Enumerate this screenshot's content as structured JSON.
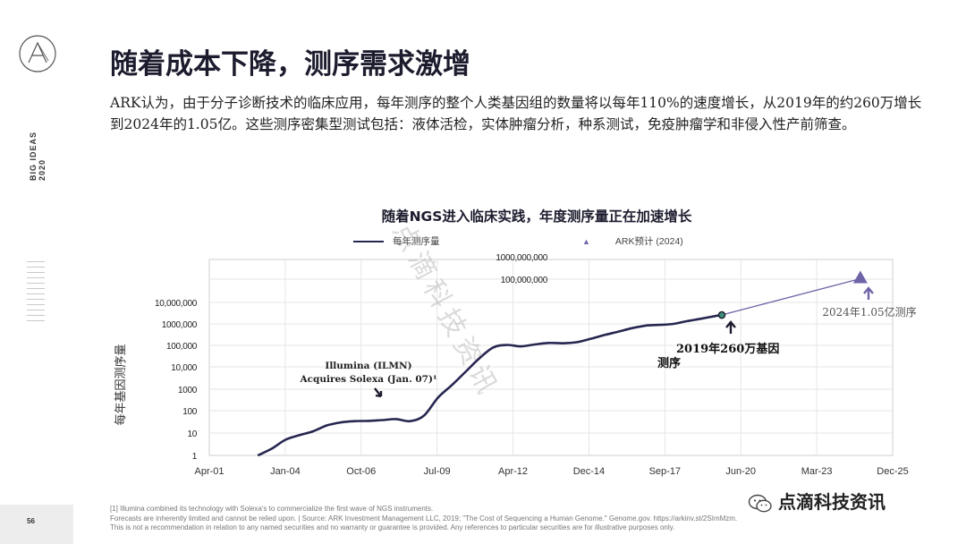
{
  "slide": {
    "title": "随着成本下降，测序需求激增",
    "body": "ARK认为，由于分子诊断技术的临床应用，每年测序的整个人类基因组的数量将以每年110%的速度增长，从2019年的约260万增长到2024年的1.05亿。这些测序密集型测试包括：液体活检，实体肿瘤分析，种系测试，免疫肿瘤学和非侵入性产前筛查。",
    "side_brand": "BIG IDEAS 2020",
    "page_number": "56",
    "footnote_lines": [
      "[1] Illumina combined its technology with Solexa's to commercialize the first wave of NGS instruments.",
      "Forecasts are inherently limited and cannot be relied upon.  |  Source: ARK Investment Management LLC, 2019; \"The Cost of Sequencing a Human Genome.\" Genome.gov. https://arkinv.st/2SImMzm.",
      "This is not a recommendation in relation to any named securities and no warranty or guarantee is provided. Any references to particular securities are for illustrative purposes only."
    ],
    "wechat_label": "点滴科技资讯",
    "watermark": "点滴科技资讯"
  },
  "colors": {
    "series_line": "#262650",
    "forecast_line": "#6f63a8",
    "marker_fill": "#3d8c7a",
    "grid": "#e6e6e6",
    "frame": "#cfcfcf"
  },
  "chart_data": {
    "type": "line",
    "title": "随着NGS进入临床实践，年度测序量正在加速增长",
    "ylabel": "每年基因测序量",
    "xlabel": "",
    "y_scale": "log",
    "ylim": [
      1,
      1000000000
    ],
    "xlim": [
      "2001-04",
      "2025-12"
    ],
    "x_tick_labels": [
      "Apr-01",
      "Jan-04",
      "Oct-06",
      "Jul-09",
      "Apr-12",
      "Dec-14",
      "Sep-17",
      "Jun-20",
      "Mar-23",
      "Dec-25"
    ],
    "y_tick_labels": [
      "1",
      "10",
      "100",
      "1000",
      "10,000",
      "100,000",
      "1000,000",
      "10,000,000",
      "100,000,000",
      "1000,000,000"
    ],
    "grid": true,
    "legend_position": "top",
    "series": [
      {
        "name": "每年测序量",
        "style": "line",
        "points": [
          [
            "2003-01",
            1
          ],
          [
            "2003-07",
            2
          ],
          [
            "2004-01",
            5
          ],
          [
            "2004-07",
            8
          ],
          [
            "2005-01",
            12
          ],
          [
            "2005-07",
            22
          ],
          [
            "2006-01",
            30
          ],
          [
            "2006-07",
            34
          ],
          [
            "2007-01",
            35
          ],
          [
            "2007-07",
            38
          ],
          [
            "2008-01",
            42
          ],
          [
            "2008-07",
            34
          ],
          [
            "2009-01",
            60
          ],
          [
            "2009-07",
            400
          ],
          [
            "2010-01",
            1500
          ],
          [
            "2010-07",
            6000
          ],
          [
            "2011-01",
            25000
          ],
          [
            "2011-07",
            80000
          ],
          [
            "2012-01",
            105000
          ],
          [
            "2012-07",
            90000
          ],
          [
            "2013-01",
            110000
          ],
          [
            "2013-07",
            130000
          ],
          [
            "2014-01",
            125000
          ],
          [
            "2014-07",
            140000
          ],
          [
            "2015-01",
            200000
          ],
          [
            "2015-07",
            300000
          ],
          [
            "2016-01",
            430000
          ],
          [
            "2016-07",
            630000
          ],
          [
            "2017-01",
            830000
          ],
          [
            "2017-07",
            900000
          ],
          [
            "2018-01",
            1000000
          ],
          [
            "2018-07",
            1350000
          ],
          [
            "2019-01",
            1750000
          ],
          [
            "2019-07",
            2300000
          ],
          [
            "2019-10",
            2600000
          ]
        ]
      },
      {
        "name": "ARK预计 (2024)",
        "style": "marker",
        "points": [
          [
            "2019-10",
            2600000
          ],
          [
            "2024-10",
            105000000
          ]
        ]
      }
    ],
    "annotations": [
      {
        "text_lines": [
          "Illumina (ILMN)",
          "Acquires Solexa (Jan. 07)¹"
        ],
        "target": [
          "2007-01",
          35
        ]
      },
      {
        "text_lines": [
          "2019年260万基因",
          "测序"
        ],
        "target": [
          "2019-10",
          2600000
        ]
      },
      {
        "text_lines": [
          "2024年1.05亿测序"
        ],
        "target": [
          "2024-10",
          105000000
        ]
      }
    ]
  }
}
